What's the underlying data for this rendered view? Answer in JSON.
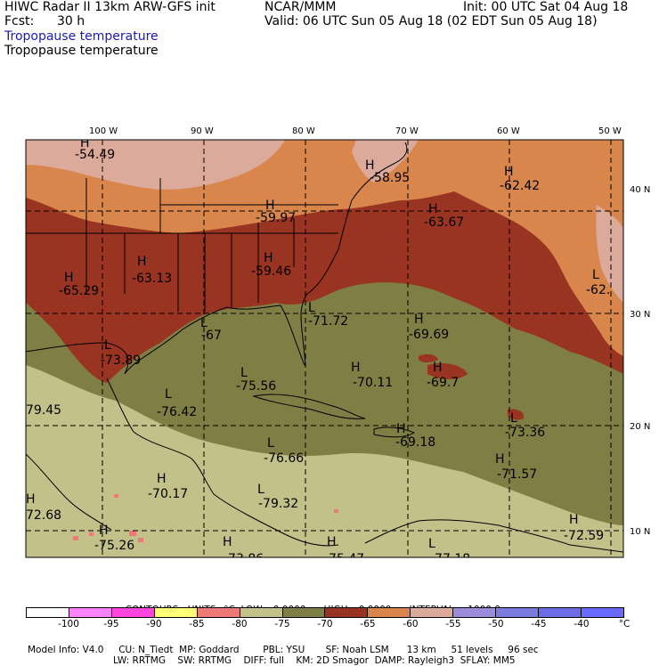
{
  "header": {
    "model": "HIWC Radar II 13km ARW-GFS init",
    "org": "NCAR/MMM",
    "init": "Init: 00 UTC Sat 04 Aug 18",
    "fcst_label": "Fcst:",
    "fcst_value": "30 h",
    "valid": "Valid: 06 UTC Sun 05 Aug 18 (02 EDT Sun 05 Aug 18)",
    "field_shaded": "Tropopause temperature",
    "field_contour": "Tropopause temperature"
  },
  "colors": {
    "c_lt75_80": "#c2c18a",
    "c_lt70_75": "#7f7e44",
    "c_lt65_70": "#993322",
    "c_lt60_65": "#d9864d",
    "c_lt55_60": "#dcaa9a",
    "c_lt85_80": "#ef7878",
    "ocean_boundary": "#000000"
  },
  "map": {
    "lon_labels": [
      "100 W",
      "90 W",
      "80 W",
      "70 W",
      "60 W",
      "50 W"
    ],
    "lat_labels": [
      "40 N",
      "30 N",
      "20 N",
      "10 N"
    ],
    "extrema": [
      {
        "type": "H",
        "value": "-54.49"
      },
      {
        "type": "H",
        "value": "-58.95"
      },
      {
        "type": "H",
        "value": "-62.42"
      },
      {
        "type": "H",
        "value": "-59.97"
      },
      {
        "type": "H",
        "value": "-63.67"
      },
      {
        "type": "H",
        "value": "-63.13"
      },
      {
        "type": "H",
        "value": "-59.46"
      },
      {
        "type": "H",
        "value": "-65.29"
      },
      {
        "type": "L",
        "value": "-62."
      },
      {
        "type": "L",
        "value": "-71.72"
      },
      {
        "type": "H",
        "value": "-69.69"
      },
      {
        "type": "L",
        "value": "-67"
      },
      {
        "type": "L",
        "value": "-73.89"
      },
      {
        "type": "H",
        "value": "-70.11"
      },
      {
        "type": "H",
        "value": "-69.7"
      },
      {
        "type": "L",
        "value": "-75.56"
      },
      {
        "type": "",
        "value": "79.45"
      },
      {
        "type": "L",
        "value": "-76.42"
      },
      {
        "type": "L",
        "value": "-73.36"
      },
      {
        "type": "H",
        "value": "-69.18"
      },
      {
        "type": "L",
        "value": "-76.66"
      },
      {
        "type": "H",
        "value": "-71.57"
      },
      {
        "type": "H",
        "value": "-70.17"
      },
      {
        "type": "L",
        "value": "-79.32"
      },
      {
        "type": "H",
        "value": "72.68"
      },
      {
        "type": "H",
        "value": "-72.59"
      },
      {
        "type": "H",
        "value": "-75.26"
      },
      {
        "type": "H",
        "value": "-73.86"
      },
      {
        "type": "H",
        "value": "-75.47"
      },
      {
        "type": "L",
        "value": "-77.18"
      }
    ]
  },
  "contours_line": {
    "contours": "CONTOURS:",
    "units": "UNITS=°C",
    "low": "LOW=",
    "low_value": "0.0000",
    "high": "HIGH=",
    "high_value": "0.0000",
    "interval": "INTERVAL=",
    "interval_value": "1000.0"
  },
  "colorbar": {
    "colors": [
      "#ffffff",
      "#ff82ff",
      "#ff46dc",
      "#ffff7a",
      "#ef7878",
      "#c2c18a",
      "#7f7e44",
      "#993322",
      "#d9864d",
      "#dcaa9a",
      "#9b8bd8",
      "#7b7bdd",
      "#6c6ce7",
      "#6a6aff"
    ],
    "labels": [
      "-100",
      "-95",
      "-90",
      "-85",
      "-80",
      "-75",
      "-70",
      "-65",
      "-60",
      "-55",
      "-50",
      "-45",
      "-40",
      "°C"
    ]
  },
  "footer": {
    "line1": {
      "model_info": "Model Info: V4.0",
      "cu": "CU: N_Tiedt",
      "mp": "MP: Goddard",
      "pbl": "PBL: YSU",
      "sf": "SF: Noah LSM",
      "res": "13 km",
      "levels": "51 levels",
      "dt": "96 sec"
    },
    "line2": {
      "lw": "LW: RRTMG",
      "sw": "SW: RRTMG",
      "diff": "DIFF: full",
      "km": "KM: 2D Smagor",
      "damp": "DAMP: Rayleigh3",
      "sflay": "SFLAY: MM5"
    }
  }
}
